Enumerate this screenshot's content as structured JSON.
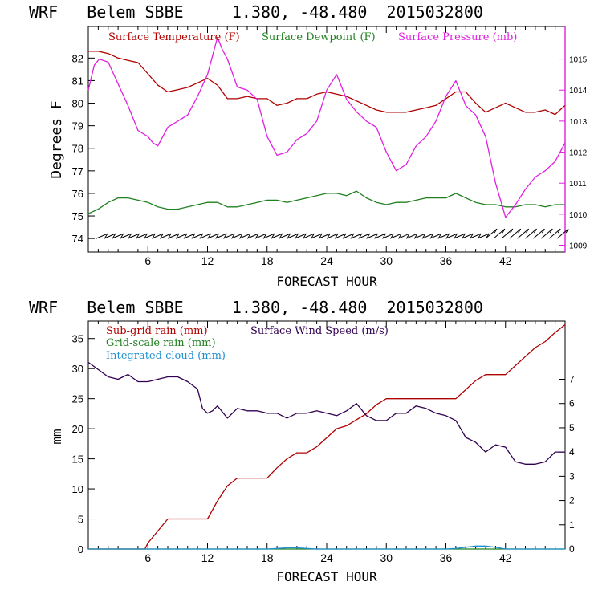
{
  "colors": {
    "temperature": "#b00000",
    "dewpoint": "#208020",
    "pressure": "#e020e0",
    "subgrid_rain": "#b00000",
    "grid_rain": "#208020",
    "cloud": "#1e90d0",
    "wind": "#300050",
    "frame": "#000000"
  },
  "chart_data": [
    {
      "type": "line",
      "title": "WRF   Belem SBBE     1.380, -48.480  2015032800",
      "xlabel": "FORECAST HOUR",
      "ylabel": "Degrees F",
      "xlim": [
        0,
        48
      ],
      "ylim": [
        73.4,
        83.4
      ],
      "xticks": [
        6,
        12,
        18,
        24,
        30,
        36,
        42
      ],
      "yticks": [
        74,
        75,
        76,
        77,
        78,
        79,
        80,
        81,
        82
      ],
      "y2lim": [
        1008.78,
        1016.05
      ],
      "y2ticks": [
        1009,
        1010,
        1011,
        1012,
        1013,
        1014,
        1015
      ],
      "legend": [
        "Surface Temperature (F)",
        "Surface Dewpoint (F)",
        "Surface Pressure (mb)"
      ],
      "legend_position": "top",
      "series": [
        {
          "name": "Surface Temperature (F)",
          "axis": "left",
          "x": [
            0,
            1,
            2,
            3,
            4,
            5,
            6,
            7,
            8,
            9,
            10,
            11,
            12,
            13,
            14,
            15,
            16,
            17,
            18,
            19,
            20,
            21,
            22,
            23,
            24,
            25,
            26,
            27,
            28,
            29,
            30,
            31,
            32,
            33,
            34,
            35,
            36,
            37,
            38,
            39,
            40,
            41,
            42,
            43,
            44,
            45,
            46,
            47,
            48
          ],
          "values": [
            82.3,
            82.3,
            82.2,
            82.0,
            81.9,
            81.8,
            81.3,
            80.8,
            80.5,
            80.6,
            80.7,
            80.9,
            81.1,
            80.8,
            80.2,
            80.2,
            80.3,
            80.2,
            80.2,
            79.9,
            80.0,
            80.2,
            80.2,
            80.4,
            80.5,
            80.4,
            80.3,
            80.1,
            79.9,
            79.7,
            79.6,
            79.6,
            79.6,
            79.7,
            79.8,
            79.9,
            80.2,
            80.5,
            80.5,
            80.0,
            79.6,
            79.8,
            80.0,
            79.8,
            79.6,
            79.6,
            79.7,
            79.5,
            79.9
          ]
        },
        {
          "name": "Surface Dewpoint (F)",
          "axis": "left",
          "x": [
            0,
            1,
            2,
            3,
            4,
            5,
            6,
            7,
            8,
            9,
            10,
            11,
            12,
            13,
            14,
            15,
            16,
            17,
            18,
            19,
            20,
            21,
            22,
            23,
            24,
            25,
            26,
            27,
            28,
            29,
            30,
            31,
            32,
            33,
            34,
            35,
            36,
            37,
            38,
            39,
            40,
            41,
            42,
            43,
            44,
            45,
            46,
            47,
            48
          ],
          "values": [
            75.1,
            75.3,
            75.6,
            75.8,
            75.8,
            75.7,
            75.6,
            75.4,
            75.3,
            75.3,
            75.4,
            75.5,
            75.6,
            75.6,
            75.4,
            75.4,
            75.5,
            75.6,
            75.7,
            75.7,
            75.6,
            75.7,
            75.8,
            75.9,
            76.0,
            76.0,
            75.9,
            76.1,
            75.8,
            75.6,
            75.5,
            75.6,
            75.6,
            75.7,
            75.8,
            75.8,
            75.8,
            76.0,
            75.8,
            75.6,
            75.5,
            75.5,
            75.4,
            75.4,
            75.5,
            75.5,
            75.4,
            75.5,
            75.5
          ]
        },
        {
          "name": "Surface Pressure (mb)",
          "axis": "right",
          "x": [
            0,
            0.6,
            1.1,
            2,
            3,
            4,
            5,
            6,
            6.5,
            7,
            8,
            9,
            10,
            11,
            12,
            12.5,
            13,
            13.5,
            14,
            15,
            16,
            17,
            18,
            19,
            20,
            21,
            22,
            23,
            24,
            25,
            26,
            27,
            28,
            29,
            30,
            31,
            32,
            33,
            34,
            35,
            36,
            37,
            38,
            39,
            40,
            41,
            42,
            43,
            44,
            45,
            46,
            47,
            48
          ],
          "values": [
            1014.0,
            1014.8,
            1015.0,
            1014.9,
            1014.2,
            1013.5,
            1012.7,
            1012.5,
            1012.3,
            1012.2,
            1012.8,
            1013.0,
            1013.2,
            1013.8,
            1014.5,
            1015.1,
            1015.7,
            1015.3,
            1015.0,
            1014.1,
            1014.0,
            1013.7,
            1012.5,
            1011.9,
            1012.0,
            1012.4,
            1012.6,
            1013.0,
            1014.0,
            1014.5,
            1013.7,
            1013.3,
            1013.0,
            1012.8,
            1012.0,
            1011.4,
            1011.6,
            1012.2,
            1012.5,
            1013.0,
            1013.8,
            1014.3,
            1013.5,
            1013.2,
            1012.5,
            1011.0,
            1009.9,
            1010.3,
            1010.8,
            1011.2,
            1011.4,
            1011.7,
            1012.3
          ]
        },
        {
          "name": "Wind barbs",
          "axis": "left",
          "level": 74,
          "x": [
            0.8,
            1.6,
            2.4,
            3.2,
            4,
            4.8,
            5.6,
            6.4,
            7.2,
            8,
            8.8,
            9.6,
            10.4,
            11.2,
            12,
            12.8,
            13.6,
            14.4,
            15.2,
            16,
            16.8,
            17.6,
            18.4,
            19.2,
            20,
            20.8,
            21.6,
            22.4,
            23.2,
            24,
            24.8,
            25.6,
            26.4,
            27.2,
            28,
            28.8,
            29.6,
            30.4,
            31.2,
            32,
            32.8,
            33.6,
            34.4,
            35.2,
            36,
            36.8,
            37.6,
            38.4,
            39.2,
            40,
            40.8,
            41.6,
            42.4,
            43.2,
            44,
            44.8,
            45.6,
            46.4,
            47.2
          ]
        }
      ]
    },
    {
      "type": "line",
      "title": "WRF   Belem SBBE     1.380, -48.480  2015032800",
      "xlabel": "FORECAST HOUR",
      "ylabel": "mm",
      "xlim": [
        0,
        48
      ],
      "ylim": [
        0,
        37.9
      ],
      "xticks": [
        6,
        12,
        18,
        24,
        30,
        36,
        42
      ],
      "yticks": [
        0,
        5,
        10,
        15,
        20,
        25,
        30,
        35
      ],
      "y2lim": [
        0,
        9.4
      ],
      "y2ticks": [
        0,
        1,
        2,
        3,
        4,
        5,
        6,
        7
      ],
      "legend": [
        "Sub-grid rain (mm)",
        "Grid-scale rain (mm)",
        "Integrated cloud (mm)",
        "Surface Wind Speed (m/s)"
      ],
      "legend_position": "top-left",
      "series": [
        {
          "name": "Sub-grid rain (mm)",
          "axis": "left",
          "x": [
            0,
            5.7,
            6,
            7,
            8,
            9,
            10,
            11,
            12,
            13,
            14,
            15,
            16,
            17,
            18,
            19,
            20,
            21,
            22,
            23,
            24,
            25,
            26,
            27,
            28,
            29,
            30,
            31,
            32,
            33,
            34,
            35,
            36,
            37,
            38,
            39,
            40,
            41,
            42,
            43,
            44,
            45,
            46,
            47,
            48
          ],
          "values": [
            0,
            0,
            1.0,
            3.0,
            5.0,
            5.0,
            5.0,
            5.0,
            5.0,
            8.0,
            10.5,
            11.8,
            11.8,
            11.8,
            11.8,
            13.5,
            15.0,
            16.0,
            16.0,
            17.0,
            18.5,
            20.0,
            20.5,
            21.5,
            22.5,
            24.0,
            25.0,
            25.0,
            25.0,
            25.0,
            25.0,
            25.0,
            25.0,
            25.0,
            26.5,
            28.0,
            29.0,
            29.0,
            29.0,
            30.5,
            32.0,
            33.5,
            34.5,
            36.0,
            37.3
          ]
        },
        {
          "name": "Grid-scale rain (mm)",
          "axis": "left",
          "x": [
            0,
            48
          ],
          "values": [
            0,
            0
          ]
        },
        {
          "name": "Integrated cloud (mm)",
          "axis": "left",
          "x": [
            0,
            18,
            19,
            20,
            21,
            22,
            23,
            36,
            37,
            38,
            39,
            40,
            41,
            42,
            48
          ],
          "values": [
            0,
            0,
            0.1,
            0.2,
            0.2,
            0.1,
            0,
            0,
            0.1,
            0.3,
            0.5,
            0.5,
            0.3,
            0,
            0
          ]
        },
        {
          "name": "Surface Wind Speed (m/s)",
          "axis": "right",
          "x": [
            0,
            1,
            2,
            3,
            4,
            5,
            6,
            7,
            8,
            9,
            10,
            11,
            11.5,
            12,
            12.5,
            13,
            14,
            15,
            16,
            17,
            18,
            19,
            20,
            21,
            22,
            23,
            24,
            25,
            26,
            27,
            28,
            29,
            30,
            31,
            32,
            33,
            34,
            35,
            36,
            37,
            38,
            39,
            40,
            41,
            42,
            43,
            44,
            45,
            46,
            47,
            48
          ],
          "values": [
            7.7,
            7.4,
            7.1,
            7.0,
            7.2,
            6.9,
            6.9,
            7.0,
            7.1,
            7.1,
            6.9,
            6.6,
            5.8,
            5.6,
            5.7,
            5.9,
            5.4,
            5.8,
            5.7,
            5.7,
            5.6,
            5.6,
            5.4,
            5.6,
            5.6,
            5.7,
            5.6,
            5.5,
            5.7,
            6.0,
            5.5,
            5.3,
            5.3,
            5.6,
            5.6,
            5.9,
            5.8,
            5.6,
            5.5,
            5.3,
            4.6,
            4.4,
            4.0,
            4.3,
            4.2,
            3.6,
            3.5,
            3.5,
            3.6,
            4.0,
            4.0
          ]
        }
      ]
    }
  ]
}
